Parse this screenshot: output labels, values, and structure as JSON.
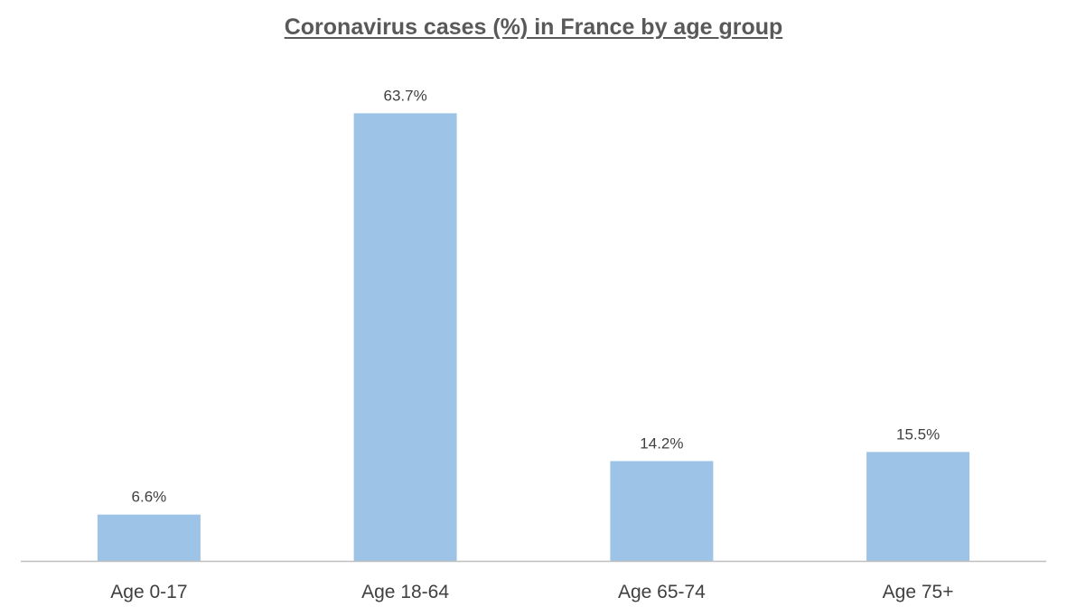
{
  "chart_data": {
    "type": "bar",
    "title": "Coronavirus cases (%) in France by age group",
    "categories": [
      "Age 0-17",
      "Age 18-64",
      "Age 65-74",
      "Age 75+"
    ],
    "values": [
      6.6,
      63.7,
      14.2,
      15.5
    ],
    "data_labels": [
      "6.6%",
      "63.7%",
      "14.2%",
      "15.5%"
    ],
    "xlabel": "",
    "ylabel": "",
    "ylim": [
      0,
      70
    ],
    "grid": false,
    "legend": "none",
    "bar_color": "#9dc3e6",
    "axis_color": "#bfbfbf",
    "text_color": "#404040"
  }
}
